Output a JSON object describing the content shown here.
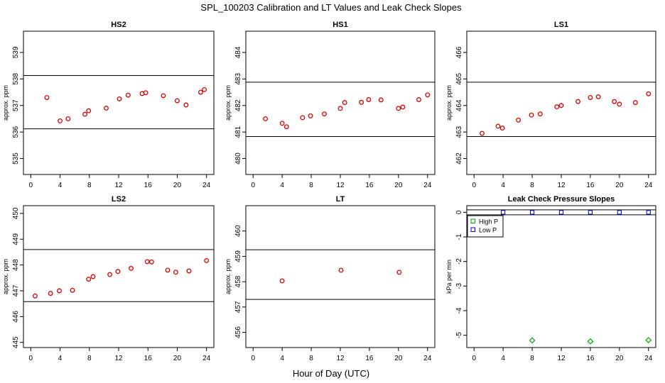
{
  "title": "SPL_100203  Calibration and LT Values and Leak Check Slopes",
  "xlabel": "Hour of Day (UTC)",
  "chart_data": [
    {
      "name": "HS2",
      "type": "scatter",
      "title": "HS2",
      "ylabel": "approx. ppm",
      "xlim": [
        -1,
        25
      ],
      "ylim": [
        534.4,
        539.8
      ],
      "xticks": [
        0,
        4,
        8,
        12,
        16,
        20,
        24
      ],
      "yticks": [
        535,
        536,
        537,
        538,
        539
      ],
      "hlines": [
        538.13,
        536.12
      ],
      "color": "#dd0000",
      "marker": "circle",
      "x": [
        2.2,
        4,
        5.1,
        7.4,
        7.9,
        10.3,
        12.1,
        13.3,
        15.2,
        15.7,
        18.1,
        20,
        21.2,
        23.2,
        23.7
      ],
      "y": [
        537.3,
        536.42,
        536.5,
        536.67,
        536.8,
        536.9,
        537.25,
        537.39,
        537.45,
        537.48,
        537.37,
        537.18,
        537.02,
        537.5,
        537.6
      ]
    },
    {
      "name": "HS1",
      "type": "scatter",
      "title": "HS1",
      "ylabel": "approx. ppm",
      "xlim": [
        -1,
        25
      ],
      "ylim": [
        479.4,
        484.8
      ],
      "xticks": [
        0,
        4,
        8,
        12,
        16,
        20,
        24
      ],
      "yticks": [
        480,
        481,
        482,
        483,
        484
      ],
      "hlines": [
        482.88,
        480.83
      ],
      "color": "#dd0000",
      "marker": "circle",
      "x": [
        1.7,
        4,
        4.6,
        6.8,
        7.9,
        9.8,
        12,
        12.6,
        14.9,
        15.9,
        17.6,
        20,
        20.6,
        22.8,
        24
      ],
      "y": [
        481.5,
        481.33,
        481.2,
        481.54,
        481.61,
        481.68,
        481.89,
        482.11,
        482.12,
        482.22,
        482.21,
        481.89,
        481.94,
        482.22,
        482.4
      ]
    },
    {
      "name": "LS1",
      "type": "scatter",
      "title": "LS1",
      "ylabel": "approx. ppm",
      "xlim": [
        -1,
        25
      ],
      "ylim": [
        461.4,
        466.8
      ],
      "xticks": [
        0,
        4,
        8,
        12,
        16,
        20,
        24
      ],
      "yticks": [
        462,
        463,
        464,
        465,
        466
      ],
      "hlines": [
        464.88,
        462.83
      ],
      "color": "#dd0000",
      "marker": "circle",
      "x": [
        1.1,
        3.3,
        3.9,
        6.1,
        7.9,
        9.1,
        11.4,
        12,
        14.3,
        16,
        17.1,
        19.3,
        20,
        22.2,
        24
      ],
      "y": [
        462.95,
        463.22,
        463.15,
        463.45,
        463.64,
        463.68,
        463.95,
        464.0,
        464.15,
        464.3,
        464.33,
        464.15,
        464.05,
        464.11,
        464.44
      ]
    },
    {
      "name": "LS2",
      "type": "scatter",
      "title": "LS2",
      "ylabel": "approx. ppm",
      "xlim": [
        -1,
        25
      ],
      "ylim": [
        444.8,
        450.3
      ],
      "xticks": [
        0,
        4,
        8,
        12,
        16,
        20,
        24
      ],
      "yticks": [
        445,
        446,
        447,
        448,
        449,
        450
      ],
      "hlines": [
        448.6,
        446.58
      ],
      "color": "#dd0000",
      "marker": "circle",
      "x": [
        0.6,
        2.7,
        3.9,
        5.7,
        7.9,
        8.5,
        10.8,
        11.9,
        13.7,
        15.9,
        16.5,
        18.7,
        19.8,
        21.6,
        24
      ],
      "y": [
        446.8,
        446.9,
        447.0,
        447.02,
        447.45,
        447.55,
        447.63,
        447.75,
        447.87,
        448.13,
        448.12,
        447.8,
        447.72,
        447.77,
        448.17
      ]
    },
    {
      "name": "LT",
      "type": "scatter",
      "title": "LT",
      "ylabel": "approx. ppm",
      "xlim": [
        -1,
        25
      ],
      "ylim": [
        455.4,
        461.0
      ],
      "xticks": [
        0,
        4,
        8,
        12,
        16,
        20,
        24
      ],
      "yticks": [
        456,
        457,
        458,
        459,
        460
      ],
      "hlines": [
        459.26,
        457.3
      ],
      "color": "#dd0000",
      "marker": "circle",
      "x": [
        4,
        12.1,
        20.1
      ],
      "y": [
        458.03,
        458.45,
        458.37
      ]
    },
    {
      "name": "Leak",
      "type": "scatter",
      "title": "Leak Check Pressure Slopes",
      "ylabel": "kPa per min",
      "xlim": [
        -1,
        25
      ],
      "ylim": [
        -5.5,
        0.27
      ],
      "xticks": [
        0,
        4,
        8,
        12,
        16,
        20,
        24
      ],
      "yticks": [
        0,
        -1,
        -2,
        -3,
        -4,
        -5
      ],
      "hlines": [
        0.1,
        -0.1
      ],
      "legend": {
        "position": "top-left",
        "entries": [
          {
            "label": "High P",
            "color": "#00aa00"
          },
          {
            "label": "Low P",
            "color": "#0000cc"
          }
        ]
      },
      "series": [
        {
          "name": "High P",
          "color": "#00aa00",
          "marker": "diamond",
          "x": [
            8,
            16,
            24
          ],
          "y": [
            -5.21,
            -5.25,
            -5.2
          ]
        },
        {
          "name": "Low P",
          "color": "#0000cc",
          "marker": "square",
          "x": [
            4,
            8,
            12,
            16,
            20,
            24
          ],
          "y": [
            0.0,
            0.0,
            0.0,
            0.0,
            0.0,
            0.0
          ]
        }
      ]
    }
  ]
}
